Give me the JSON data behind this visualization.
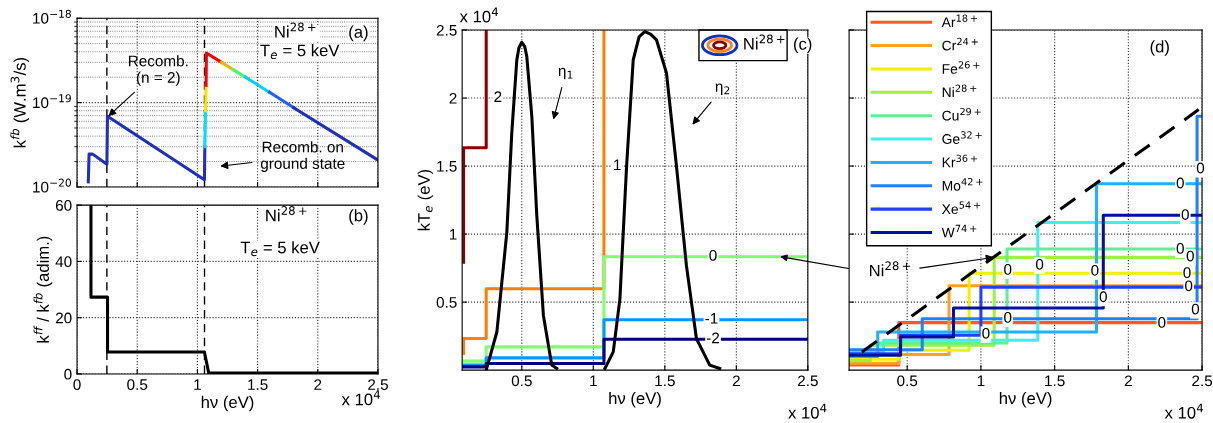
{
  "chart_data": [
    {
      "type": "line",
      "ylabel": "k$^{fb}$ (W.m$^{3}$/s)",
      "log": "y",
      "xlim": [
        0,
        2.5
      ],
      "ylim": [
        1e-20,
        1e-18
      ],
      "xticks": [
        0,
        0.5,
        1,
        1.5,
        2,
        2.5
      ],
      "yticks": [
        {
          "value": 1e-20,
          "label": "10$^{−20}$"
        },
        {
          "value": 1e-19,
          "label": "10$^{−19}$"
        },
        {
          "value": 1e-18,
          "label": "10$^{−18}$"
        }
      ],
      "tick_labels": "y",
      "grid": true,
      "ref_lines": [
        {
          "axis": "x",
          "value": 0.248,
          "color": "#000000",
          "line_style": "dashed"
        },
        {
          "axis": "x",
          "value": 1.059,
          "color": "#000000",
          "line_style": "dashed"
        }
      ],
      "annotations": [
        "Ni$^{28+}$",
        "T$_{e}$ = 5 keV",
        "(a)",
        {
          "text": "Recomb.\n(n = 2)",
          "x": 0.26,
          "y": 6.9e-20
        },
        "Recomb. on\nground state"
      ],
      "series": [
        {
          "color": "#1f2fbf",
          "x": [
            0.0937,
            0.1,
            0.13,
            0.2481,
            0.253,
            1.0584,
            1.062
          ],
          "values": [
            1.15e-20,
            2.45e-20,
            2.45e-20,
            1.86e-20,
            6.9e-20,
            1.22e-20,
            3e-20
          ]
        },
        {
          "color": "#00e0ff",
          "x": [
            1.062,
            1.068
          ],
          "values": [
            3e-20,
            8e-20
          ]
        },
        {
          "color": "#ffe000",
          "x": [
            1.068,
            1.072
          ],
          "values": [
            8e-20,
            1.6e-19
          ]
        },
        {
          "color": "#ff0000",
          "x": [
            1.072,
            1.075,
            1.2
          ],
          "values": [
            1.6e-19,
            3.87e-19,
            3e-19
          ]
        },
        {
          "color": "#ffb000",
          "x": [
            1.2,
            1.3
          ],
          "values": [
            3e-19,
            2.44e-19
          ]
        },
        {
          "color": "#40ff60",
          "x": [
            1.3,
            1.4
          ],
          "values": [
            2.44e-19,
            2e-19
          ]
        },
        {
          "color": "#00d0ff",
          "x": [
            1.4,
            1.6
          ],
          "values": [
            2e-19,
            1.32e-19
          ]
        },
        {
          "color": "#2060ff",
          "x": [
            1.6,
            1.8
          ],
          "values": [
            1.32e-19,
            8.7e-20
          ]
        },
        {
          "color": "#1f2fbf",
          "x": [
            1.8,
            2.5
          ],
          "values": [
            8.7e-20,
            2.08e-20
          ]
        }
      ]
    },
    {
      "type": "line",
      "xlabel": "hν (eV)",
      "ylabel": "k$^{ff}$ / k$^{fb}$ (adim.)",
      "xlim": [
        0,
        2.5
      ],
      "ylim": [
        0,
        60
      ],
      "xticks": [
        0,
        0.5,
        1,
        1.5,
        2,
        2.5
      ],
      "yticks": [
        0,
        20,
        40,
        60
      ],
      "grid": true,
      "ref_lines": [
        {
          "axis": "x",
          "value": 0.248,
          "color": "#000000",
          "line_style": "dashed"
        },
        {
          "axis": "x",
          "value": 1.059,
          "color": "#000000",
          "line_style": "dashed"
        }
      ],
      "annotations": [
        "Ni$^{28+}$",
        "T$_{e}$ = 5 keV",
        "(b)",
        "x 10$^{4}$"
      ],
      "series": [
        {
          "color": "#000000",
          "x": [
            0.1158,
            0.1158,
            0.2536,
            0.2536,
            1.0584,
            1.0943,
            2.5
          ],
          "values": [
            60,
            27.3,
            27.3,
            7.8,
            7.8,
            0.3,
            0.3
          ]
        }
      ]
    },
    {
      "type": "line",
      "xlabel": "hν (eV)",
      "ylabel": "kT$_{e}$ (eV)",
      "xlim": [
        0.083,
        2.5
      ],
      "ylim": [
        0,
        2.5
      ],
      "xticks": [
        0.5,
        1,
        1.5,
        2,
        2.5
      ],
      "yticks": [
        0.5,
        1,
        1.5,
        2,
        2.5
      ],
      "grid": true,
      "annotations": [
        "x 10$^{4}$",
        "x 10$^{4}$",
        "(c)",
        "Ni$^{28+}$",
        "η$_{1}$",
        "η$_{2}$",
        {
          "text": "2",
          "x": 0.3326,
          "y": 2.0
        },
        {
          "text": "1",
          "x": 1.167,
          "y": 1.5
        },
        {
          "text": "0",
          "x": 1.837,
          "y": 0.834
        },
        {
          "text": "-1",
          "x": 1.826,
          "y": 0.371
        },
        {
          "text": "-2",
          "x": 1.837,
          "y": 0.227
        }
      ],
      "series": [
        {
          "color": "#8b0000",
          "x": [
            0.093,
            0.093,
            0.2512,
            0.2512
          ],
          "values": [
            0.793,
            1.634,
            1.634,
            2.5
          ]
        },
        {
          "color": "#ff7f00",
          "x": [
            0.093,
            0.093,
            0.2512,
            0.2512,
            1.0744,
            1.0744
          ],
          "values": [
            0.122,
            0.232,
            0.232,
            0.598,
            0.598,
            2.5
          ]
        },
        {
          "color": "#80ff70",
          "x": [
            0.093,
            0.2512,
            0.2512,
            1.0744,
            1.0744,
            2.5
          ],
          "values": [
            0.066,
            0.066,
            0.171,
            0.171,
            0.834,
            0.834
          ]
        },
        {
          "color": "#0099ff",
          "x": [
            0.093,
            0.2512,
            0.2512,
            1.0744,
            1.0744,
            2.5
          ],
          "values": [
            0.037,
            0.037,
            0.09,
            0.09,
            0.371,
            0.371
          ]
        },
        {
          "color": "#000080",
          "x": [
            0.093,
            0.2512,
            0.2512,
            1.0744,
            1.0744,
            2.5
          ],
          "values": [
            0.024,
            0.024,
            0.049,
            0.049,
            0.227,
            0.227
          ]
        },
        {
          "color": "#000000",
          "x": [
            0.2512,
            0.3256,
            0.3953,
            0.43,
            0.4651,
            0.48,
            0.5,
            0.52,
            0.535,
            0.57,
            0.605,
            0.651,
            0.7093,
            0.744
          ],
          "values": [
            0,
            0.28,
            1.012,
            1.744,
            2.28,
            2.37,
            2.41,
            2.38,
            2.305,
            1.866,
            1.134,
            0.402,
            0.037,
            0.012
          ]
        },
        {
          "color": "#000000",
          "x": [
            1.0814,
            1.1395,
            1.186,
            1.2326,
            1.279,
            1.32,
            1.36,
            1.4,
            1.442,
            1.5116,
            1.5814,
            1.651,
            1.721,
            1.814,
            1.884
          ],
          "values": [
            0.012,
            0.134,
            0.524,
            1.5,
            2.28,
            2.45,
            2.488,
            2.47,
            2.427,
            2.183,
            1.5,
            0.768,
            0.232,
            0.037,
            0.012
          ]
        }
      ]
    },
    {
      "type": "line",
      "xlabel": "hν (eV)",
      "xlim": [
        0.106,
        2.5
      ],
      "ylim": [
        0,
        2.5
      ],
      "xticks": [
        0.5,
        1,
        1.5,
        2,
        2.5
      ],
      "yticks": [
        0.5,
        1,
        1.5,
        2,
        2.5
      ],
      "tick_labels": "x",
      "grid": true,
      "legend": "top left",
      "annotations": [
        "(d)",
        "x 10$^{4}$",
        {
          "text": "Ni$^{28+}$",
          "x": 1.09,
          "y": 0.829
        },
        {
          "text": "0",
          "x": 2.352,
          "y": 1.366
        },
        {
          "text": "0",
          "x": 2.386,
          "y": 1.134
        },
        {
          "text": "0",
          "x": 2.352,
          "y": 0.885
        },
        {
          "text": "0",
          "x": 2.42,
          "y": 0.829
        },
        {
          "text": "0",
          "x": 2.398,
          "y": 0.707
        },
        {
          "text": "0",
          "x": 2.409,
          "y": 0.61
        },
        {
          "text": "0",
          "x": 2.227,
          "y": 0.341
        },
        {
          "text": "0",
          "x": 1.182,
          "y": 0.378
        },
        {
          "text": "0",
          "x": 1.034,
          "y": 0.261
        },
        {
          "text": "0",
          "x": 1.398,
          "y": 0.768
        },
        {
          "text": "0",
          "x": 1.773,
          "y": 0.724
        },
        {
          "text": "0",
          "x": 1.83,
          "y": 0.53
        },
        {
          "text": "0",
          "x": 2.455,
          "y": 0.439
        },
        {
          "text": "0",
          "x": 1.182,
          "y": 0.731
        },
        {
          "text": "0",
          "x": 2.489,
          "y": 1.476
        }
      ],
      "series": [
        {
          "name": "Ar$^{18+}$",
          "color": "#ff5a1f",
          "x": [
            0.109,
            0.443,
            0.443,
            2.5
          ],
          "values": [
            0.037,
            0.037,
            0.349,
            0.349
          ]
        },
        {
          "name": "Cr$^{24+}$",
          "color": "#ffa020",
          "x": [
            0.109,
            0.443,
            0.443,
            0.784,
            0.784,
            2.5
          ],
          "values": [
            0.05,
            0.05,
            0.115,
            0.115,
            0.62,
            0.62
          ]
        },
        {
          "name": "Fe$^{26+}$",
          "color": "#f0f000",
          "x": [
            0.109,
            0.443,
            0.443,
            0.92,
            0.92,
            2.5
          ],
          "values": [
            0.08,
            0.08,
            0.146,
            0.146,
            0.712,
            0.712
          ]
        },
        {
          "name": "Ni$^{28+}$",
          "color": "#a0f040",
          "x": [
            0.109,
            0.25,
            0.25,
            1.09,
            1.09,
            2.5
          ],
          "values": [
            0.07,
            0.07,
            0.183,
            0.183,
            0.829,
            0.829
          ]
        },
        {
          "name": "Cu$^{29+}$",
          "color": "#60f090",
          "x": [
            0.318,
            1.177,
            1.177,
            2.5
          ],
          "values": [
            0.2,
            0.2,
            0.89,
            0.89
          ]
        },
        {
          "name": "Ge$^{32+}$",
          "color": "#40f0f0",
          "x": [
            0.109,
            0.34,
            0.34,
            1.386,
            1.386,
            2.5
          ],
          "values": [
            0.13,
            0.13,
            0.22,
            0.22,
            1.085,
            1.085
          ]
        },
        {
          "name": "Kr$^{36+}$",
          "color": "#20b0ff",
          "x": [
            0.109,
            0.3,
            0.3,
            1.784,
            1.784,
            2.5
          ],
          "values": [
            0.1,
            0.1,
            0.28,
            0.28,
            1.37,
            1.37
          ]
        },
        {
          "name": "Mo$^{42+}$",
          "color": "#2080ff",
          "x": [
            0.109,
            0.602,
            0.602,
            2.466,
            2.466,
            2.5
          ],
          "values": [
            0.15,
            0.15,
            0.378,
            0.378,
            1.866,
            1.866
          ]
        },
        {
          "name": "Xe$^{54+}$",
          "color": "#2040ff",
          "x": [
            0.109,
            0.455,
            0.455,
            1.0,
            1.0,
            2.5
          ],
          "values": [
            0.12,
            0.12,
            0.256,
            0.256,
            0.61,
            0.61
          ]
        },
        {
          "name": "W$^{74+}$",
          "color": "#0010a0",
          "x": [
            0.109,
            0.455,
            0.455,
            0.814,
            0.814,
            1.83,
            1.83,
            2.5
          ],
          "values": [
            0.11,
            0.11,
            0.244,
            0.244,
            0.456,
            0.456,
            1.139,
            1.139
          ]
        },
        {
          "color": "#000000",
          "line_style": "dashed",
          "x": [
            0.193,
            2.477
          ],
          "values": [
            0.134,
            1.915
          ]
        }
      ]
    }
  ]
}
